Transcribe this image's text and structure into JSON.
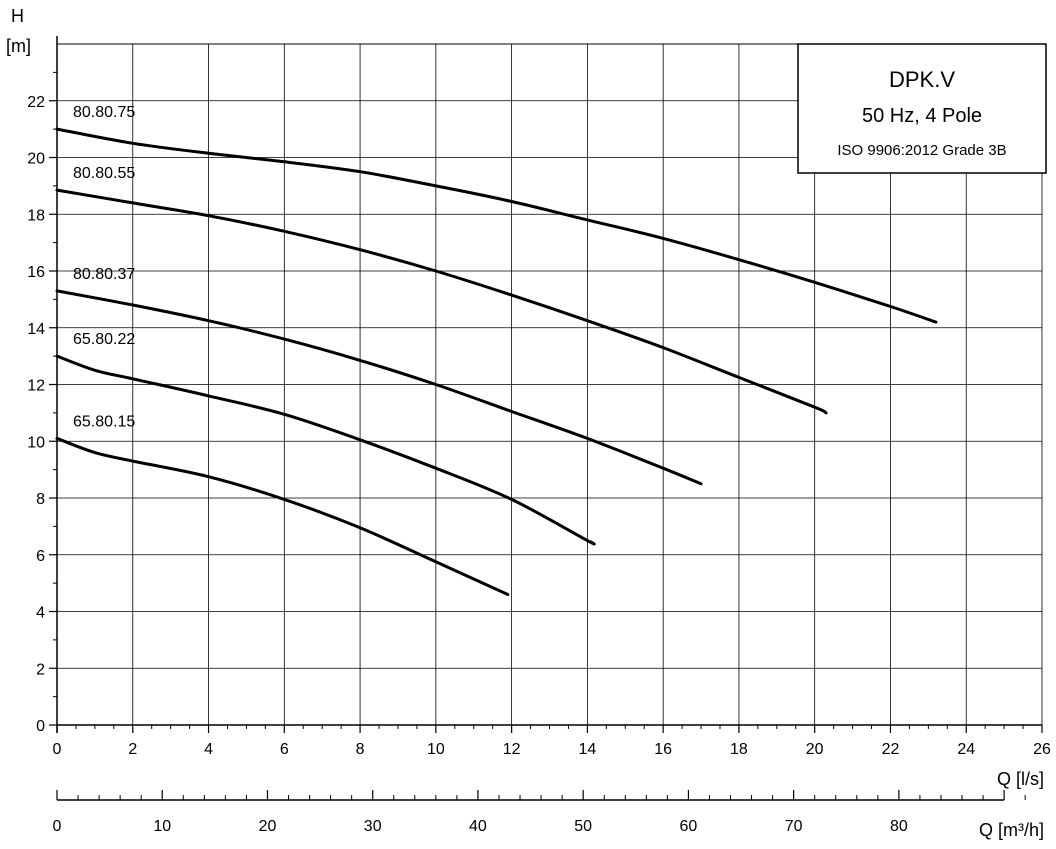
{
  "chart_data": {
    "type": "line",
    "legend_box": {
      "title": "DPK.V",
      "subtitle": "50 Hz, 4 Pole",
      "standard": "ISO 9906:2012 Grade 3B",
      "placement": "top-right"
    },
    "y_axis": {
      "label_line1": "H",
      "label_line2": "[m]",
      "range": [
        0,
        24
      ],
      "ticks": [
        0,
        2,
        4,
        6,
        8,
        10,
        12,
        14,
        16,
        18,
        20,
        22
      ]
    },
    "x_axis": {
      "label": "Q [l/s]",
      "range": [
        0,
        26
      ],
      "ticks": [
        0,
        2,
        4,
        6,
        8,
        10,
        12,
        14,
        16,
        18,
        20,
        22,
        24,
        26
      ]
    },
    "x2_axis": {
      "label": "Q [m³/h]",
      "ticks": [
        0,
        10,
        20,
        30,
        40,
        50,
        60,
        70,
        80
      ]
    },
    "grid": true,
    "series": [
      {
        "name": "80.80.75",
        "x": [
          0,
          2,
          4,
          6,
          8,
          10,
          12,
          14,
          16,
          18,
          20,
          22,
          23.2
        ],
        "y": [
          21.0,
          20.5,
          20.15,
          19.85,
          19.5,
          19.0,
          18.45,
          17.8,
          17.15,
          16.4,
          15.6,
          14.75,
          14.2
        ]
      },
      {
        "name": "80.80.55",
        "x": [
          0,
          2,
          4,
          6,
          8,
          10,
          12,
          14,
          16,
          18,
          20,
          20.3
        ],
        "y": [
          18.85,
          18.4,
          17.95,
          17.4,
          16.75,
          16.0,
          15.15,
          14.25,
          13.3,
          12.25,
          11.2,
          11.0
        ]
      },
      {
        "name": "80.80.37",
        "x": [
          0,
          2,
          4,
          6,
          8,
          10,
          12,
          14,
          16,
          17.0
        ],
        "y": [
          15.3,
          14.8,
          14.25,
          13.6,
          12.85,
          12.0,
          11.05,
          10.1,
          9.05,
          8.5
        ]
      },
      {
        "name": "65.80.22",
        "x": [
          0,
          1,
          2,
          4,
          6,
          8,
          10,
          12,
          14,
          14.1
        ],
        "y": [
          13.0,
          12.5,
          12.2,
          11.6,
          10.95,
          10.05,
          9.05,
          7.95,
          6.5,
          6.45
        ]
      },
      {
        "name": "65.80.15",
        "x": [
          0,
          1,
          2,
          4,
          6,
          8,
          10,
          11.9
        ],
        "y": [
          10.1,
          9.6,
          9.3,
          8.75,
          7.95,
          6.95,
          5.75,
          4.6
        ]
      }
    ]
  }
}
